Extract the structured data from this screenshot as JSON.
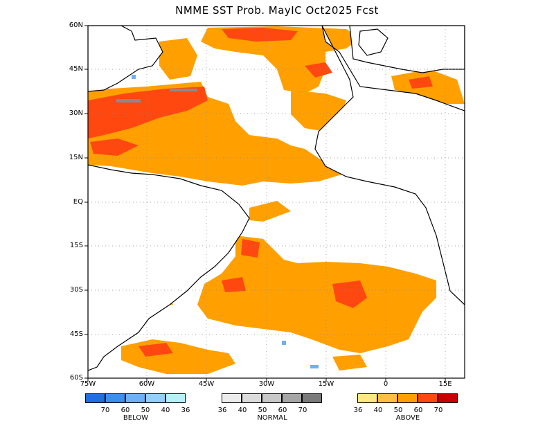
{
  "title": "NMME SST Prob. MayIC  Oct2025 Fcst",
  "axes": {
    "lat_labels": [
      "60N",
      "45N",
      "30N",
      "15N",
      "EQ",
      "15S",
      "30S",
      "45S",
      "60S"
    ],
    "lon_labels": [
      "75W",
      "60W",
      "45W",
      "30W",
      "15W",
      "0",
      "15E"
    ]
  },
  "legend": {
    "below": {
      "title": "BELOW",
      "ticks": [
        "70",
        "60",
        "50",
        "40",
        "36"
      ],
      "colors": [
        "#1f6fe0",
        "#3c8ef0",
        "#6fb0f5",
        "#96cef8",
        "#b8f0f8"
      ]
    },
    "normal": {
      "title": "NORMAL",
      "ticks": [
        "36",
        "40",
        "50",
        "60",
        "70"
      ],
      "colors": [
        "#ececec",
        "#dcdcdc",
        "#c8c8c8",
        "#a6a6a6",
        "#7a7a7a"
      ]
    },
    "above": {
      "title": "ABOVE",
      "ticks": [
        "36",
        "40",
        "50",
        "60",
        "70"
      ],
      "colors": [
        "#ffe880",
        "#ffc040",
        "#ffa000",
        "#ff4810",
        "#c80000"
      ]
    }
  }
}
